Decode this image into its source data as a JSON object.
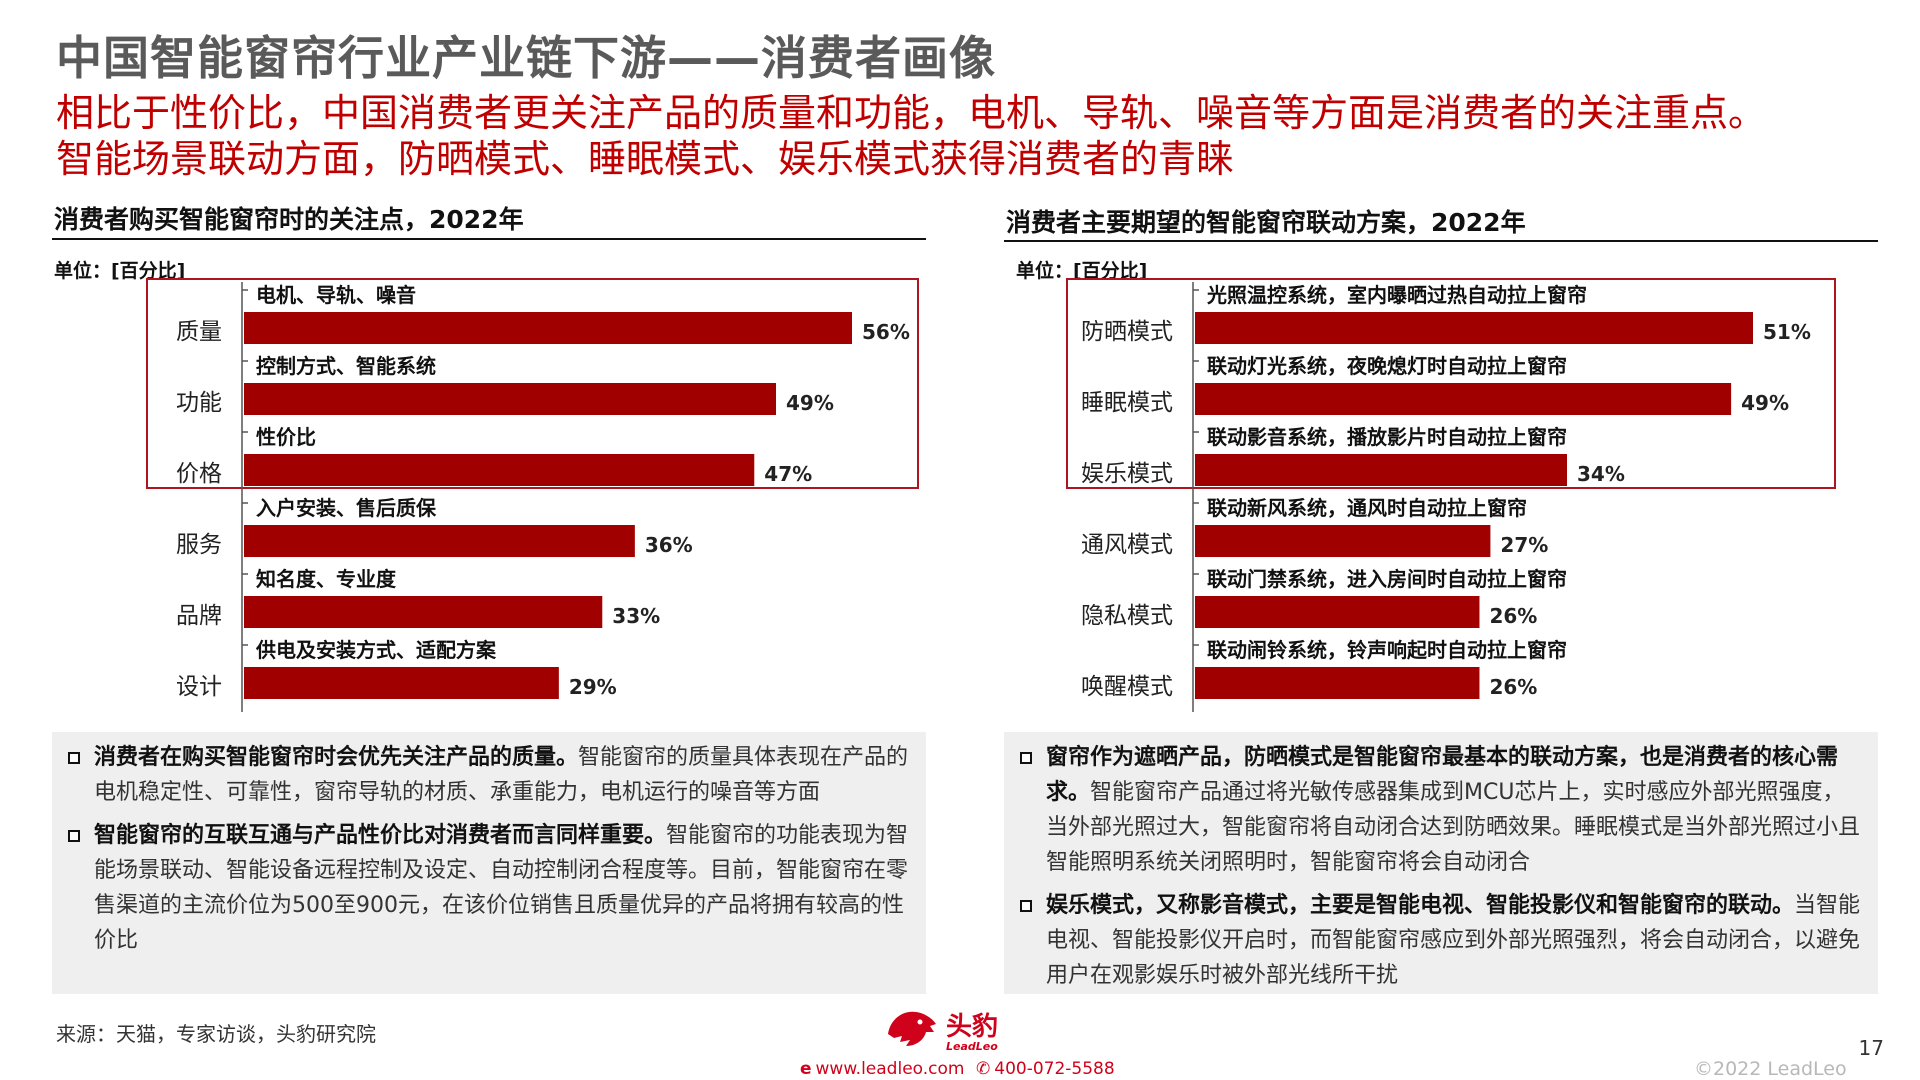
{
  "title": "中国智能窗帘行业产业链下游——消费者画像",
  "subtitle_line1": "相比于性价比，中国消费者更关注产品的质量和功能，电机、导轨、噪音等方面是消费者的关注重点。",
  "subtitle_line2": "智能场景联动方面，防晒模式、睡眠模式、娱乐模式获得消费者的青睐",
  "colors": {
    "accent": "#c00000",
    "bar": "#a00000",
    "highlight_border": "#b0141e",
    "note_bg": "#efefef"
  },
  "left_panel": {
    "heading": "消费者购买智能窗帘时的关注点，2022年",
    "unit": "单位：[百分比]",
    "notes": [
      {
        "bold": "消费者在购买智能窗帘时会优先关注产品的质量。",
        "text": "智能窗帘的质量具体表现在产品的电机稳定性、可靠性，窗帘导轨的材质、承重能力，电机运行的噪音等方面"
      },
      {
        "bold": "智能窗帘的互联互通与产品性价比对消费者而言同样重要。",
        "text": "智能窗帘的功能表现为智能场景联动、智能设备远程控制及设定、自动控制闭合程度等。目前，智能窗帘在零售渠道的主流价位为500至900元，在该价位销售且质量优异的产品将拥有较高的性价比"
      }
    ]
  },
  "right_panel": {
    "heading": "消费者主要期望的智能窗帘联动方案，2022年",
    "unit": "单位：[百分比]",
    "notes": [
      {
        "bold": "窗帘作为遮晒产品，防晒模式是智能窗帘最基本的联动方案，也是消费者的核心需求。",
        "text": "智能窗帘产品通过将光敏传感器集成到MCU芯片上，实时感应外部光照强度，当外部光照过大，智能窗帘将自动闭合达到防晒效果。睡眠模式是当外部光照过小且智能照明系统关闭照明时，智能窗帘将会自动闭合"
      },
      {
        "bold": "娱乐模式，又称影音模式，主要是智能电视、智能投影仪和智能窗帘的联动。",
        "text": "当智能电视、智能投影仪开启时，而智能窗帘感应到外部光照强烈，将会自动闭合，以避免用户在观影娱乐时被外部光线所干扰"
      }
    ]
  },
  "chart_data": [
    {
      "type": "bar",
      "orientation": "horizontal",
      "title": "消费者购买智能窗帘时的关注点，2022年",
      "unit": "单位：[百分比]",
      "categories": [
        "质量",
        "功能",
        "价格",
        "服务",
        "品牌",
        "设计"
      ],
      "descriptions": [
        "电机、导轨、噪音",
        "控制方式、智能系统",
        "性价比",
        "入户安装、售后质保",
        "知名度、专业度",
        "供电及安装方式、适配方案"
      ],
      "values": [
        56,
        49,
        47,
        36,
        33,
        29
      ],
      "value_labels": [
        "56%",
        "49%",
        "47%",
        "36%",
        "33%",
        "29%"
      ],
      "highlighted_categories": [
        "质量",
        "功能",
        "价格"
      ],
      "xlim": [
        0,
        56
      ],
      "grid": false
    },
    {
      "type": "bar",
      "orientation": "horizontal",
      "title": "消费者主要期望的智能窗帘联动方案，2022年",
      "unit": "单位：[百分比]",
      "categories": [
        "防晒模式",
        "睡眠模式",
        "娱乐模式",
        "通风模式",
        "隐私模式",
        "唤醒模式"
      ],
      "descriptions": [
        "光照温控系统，室内曝晒过热自动拉上窗帘",
        "联动灯光系统，夜晚熄灯时自动拉上窗帘",
        "联动影音系统，播放影片时自动拉上窗帘",
        "联动新风系统，通风时自动拉上窗帘",
        "联动门禁系统，进入房间时自动拉上窗帘",
        "联动闹铃系统，铃声响起时自动拉上窗帘"
      ],
      "values": [
        51,
        49,
        34,
        27,
        26,
        26
      ],
      "value_labels": [
        "51%",
        "49%",
        "34%",
        "27%",
        "26%",
        "26%"
      ],
      "highlighted_categories": [
        "防晒模式",
        "睡眠模式",
        "娱乐模式"
      ],
      "xlim": [
        0,
        51
      ],
      "grid": false
    }
  ],
  "footer": {
    "source": "来源：天猫，专家访谈，头豹研究院",
    "logo_cn": "头豹",
    "logo_en": "LeadLeo",
    "website": "www.leadleo.com",
    "phone": "400-072-5588",
    "copyright": "©2022 LeadLeo",
    "page": "17"
  }
}
